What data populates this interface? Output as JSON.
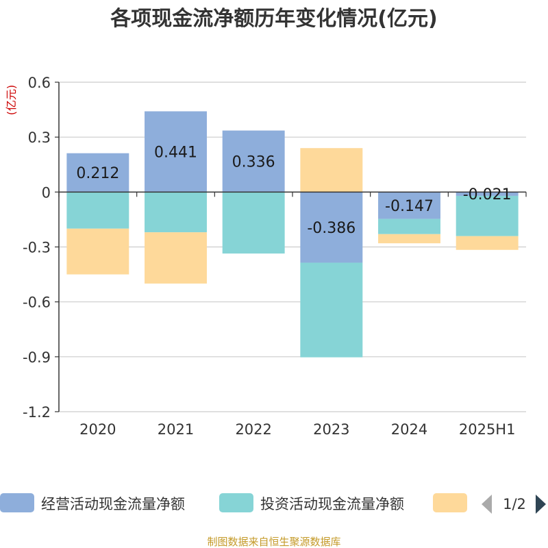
{
  "chart_data": {
    "type": "bar",
    "stacked": true,
    "title": "各项现金流净额历年变化情况(亿元)",
    "ylabel": "(亿元)",
    "categories": [
      "2020",
      "2021",
      "2022",
      "2023",
      "2024",
      "2025H1"
    ],
    "ylim": [
      -1.2,
      0.6
    ],
    "yticks": [
      "0.6",
      "0.3",
      "0",
      "-0.3",
      "-0.6",
      "-0.9",
      "-1.2"
    ],
    "ytick_values": [
      0.6,
      0.3,
      0,
      -0.3,
      -0.6,
      -0.9,
      -1.2
    ],
    "grid": true,
    "series": [
      {
        "name": "经营活动现金流量净额",
        "color": "#8eaedb",
        "values": [
          0.212,
          0.441,
          0.336,
          -0.386,
          -0.147,
          -0.021
        ],
        "labels": [
          "0.212",
          "0.441",
          "0.336",
          "-0.386",
          "-0.147",
          "-0.021"
        ]
      },
      {
        "name": "投资活动现金流量净额",
        "color": "#86d4d6",
        "values": [
          -0.2,
          -0.22,
          -0.336,
          -0.517,
          -0.083,
          -0.22
        ]
      },
      {
        "name": "",
        "color": "#fed99a",
        "values": [
          -0.25,
          -0.28,
          0,
          0.24,
          -0.05,
          -0.075
        ]
      }
    ],
    "legend": {
      "placement": "bottom",
      "items": [
        "经营活动现金流量净额",
        "投资活动现金流量净额",
        ""
      ],
      "page": "1/2"
    }
  },
  "footer": {
    "source": "制图数据来自恒生聚源数据库"
  }
}
